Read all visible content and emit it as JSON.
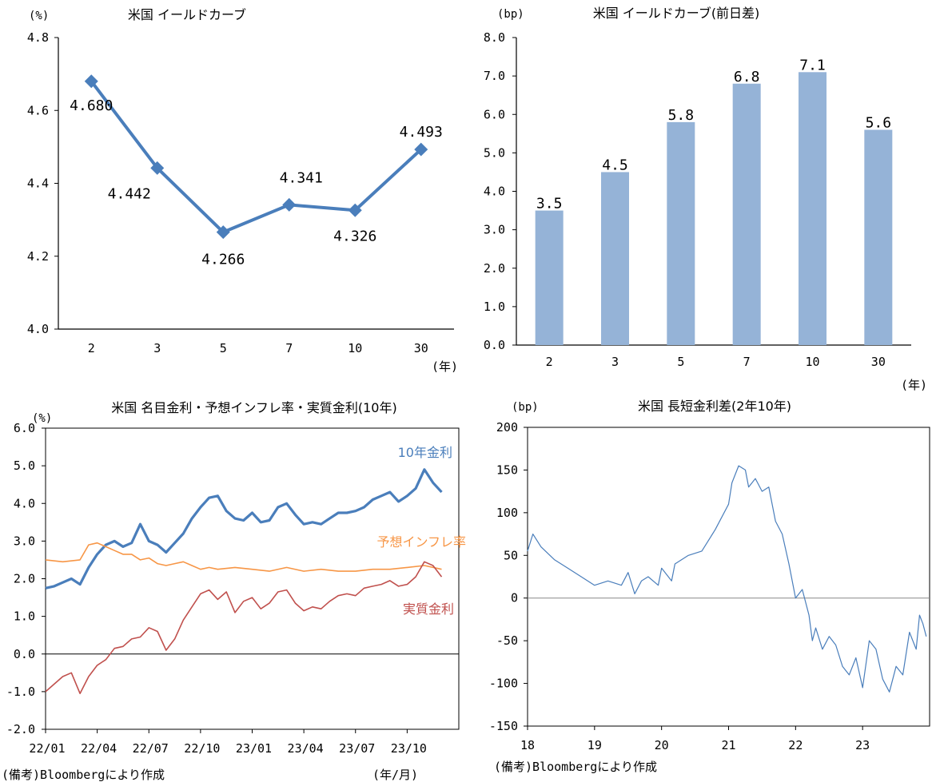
{
  "chart_data": [
    {
      "id": "yield_curve",
      "type": "line",
      "title": "米国 イールドカーブ",
      "unit_label": "(%)",
      "xlabel": "(年)",
      "categories": [
        "2",
        "3",
        "5",
        "7",
        "10",
        "30"
      ],
      "values": [
        4.68,
        4.442,
        4.266,
        4.341,
        4.326,
        4.493
      ],
      "value_labels": [
        "4.680",
        "4.442",
        "4.266",
        "4.341",
        "4.326",
        "4.493"
      ],
      "ylim": [
        4.0,
        4.8
      ],
      "yticks": [
        "4.0",
        "4.2",
        "4.4",
        "4.6",
        "4.8"
      ],
      "color": "#4a7ebb"
    },
    {
      "id": "yield_change",
      "type": "bar",
      "title": "米国 イールドカーブ(前日差)",
      "unit_label": "(bp)",
      "xlabel": "(年)",
      "categories": [
        "2",
        "3",
        "5",
        "7",
        "10",
        "30"
      ],
      "values": [
        3.5,
        4.5,
        5.8,
        6.8,
        7.1,
        5.6
      ],
      "value_labels": [
        "3.5",
        "4.5",
        "5.8",
        "6.8",
        "7.1",
        "5.6"
      ],
      "ylim": [
        0.0,
        8.0
      ],
      "yticks": [
        "0.0",
        "1.0",
        "2.0",
        "3.0",
        "4.0",
        "5.0",
        "6.0",
        "7.0",
        "8.0"
      ],
      "color": "#95b3d7"
    },
    {
      "id": "rates",
      "type": "line",
      "title": "米国 名目金利・予想インフレ率・実質金利(10年)",
      "unit_label": "(%)",
      "xlabel": "(年/月)",
      "note": "(備考)Bloombergにより作成",
      "x_range": [
        0,
        24
      ],
      "ylim": [
        -2.0,
        6.0
      ],
      "yticks": [
        "-2.0",
        "-1.0",
        "0.0",
        "1.0",
        "2.0",
        "3.0",
        "4.0",
        "5.0",
        "6.0"
      ],
      "xticks": [
        "22/01",
        "22/04",
        "22/07",
        "22/10",
        "23/01",
        "23/04",
        "23/07",
        "23/10"
      ],
      "series": [
        {
          "name": "10年金利",
          "color": "#4a7ebb",
          "width": 3.2,
          "x": [
            0,
            0.5,
            1,
            1.5,
            2,
            2.5,
            3,
            3.5,
            4,
            4.5,
            5,
            5.5,
            6,
            6.5,
            7,
            7.5,
            8,
            8.5,
            9,
            9.5,
            10,
            10.5,
            11,
            11.5,
            12,
            12.5,
            13,
            13.5,
            14,
            14.5,
            15,
            15.5,
            16,
            16.5,
            17,
            17.5,
            18,
            18.5,
            19,
            19.5,
            20,
            20.5,
            21,
            21.5,
            22,
            22.5,
            23
          ],
          "values": [
            1.75,
            1.8,
            1.9,
            2.0,
            1.85,
            2.3,
            2.65,
            2.9,
            3.0,
            2.85,
            2.95,
            3.45,
            3.0,
            2.9,
            2.7,
            2.95,
            3.2,
            3.6,
            3.9,
            4.15,
            4.2,
            3.8,
            3.6,
            3.55,
            3.75,
            3.5,
            3.55,
            3.9,
            4.0,
            3.7,
            3.45,
            3.5,
            3.45,
            3.6,
            3.75,
            3.75,
            3.8,
            3.9,
            4.1,
            4.2,
            4.3,
            4.05,
            4.2,
            4.4,
            4.9,
            4.55,
            4.3
          ]
        },
        {
          "name": "予想インフレ率",
          "color": "#f79646",
          "width": 1.6,
          "x": [
            0,
            1,
            2,
            2.5,
            3,
            3.5,
            4,
            4.5,
            5,
            5.5,
            6,
            6.5,
            7,
            7.5,
            8,
            8.5,
            9,
            9.5,
            10,
            11,
            12,
            13,
            14,
            15,
            16,
            17,
            18,
            19,
            20,
            21,
            22,
            23
          ],
          "values": [
            2.5,
            2.45,
            2.5,
            2.9,
            2.95,
            2.85,
            2.75,
            2.65,
            2.65,
            2.5,
            2.55,
            2.4,
            2.35,
            2.4,
            2.45,
            2.35,
            2.25,
            2.3,
            2.25,
            2.3,
            2.25,
            2.2,
            2.3,
            2.2,
            2.25,
            2.2,
            2.2,
            2.25,
            2.25,
            2.3,
            2.35,
            2.25
          ]
        },
        {
          "name": "実質金利",
          "color": "#c0504d",
          "width": 1.6,
          "x": [
            0,
            1,
            1.5,
            2,
            2.5,
            3,
            3.5,
            4,
            4.5,
            5,
            5.5,
            6,
            6.5,
            7,
            7.5,
            8,
            8.5,
            9,
            9.5,
            10,
            10.5,
            11,
            11.5,
            12,
            12.5,
            13,
            13.5,
            14,
            14.5,
            15,
            15.5,
            16,
            16.5,
            17,
            17.5,
            18,
            18.5,
            19,
            19.5,
            20,
            20.5,
            21,
            21.5,
            22,
            22.5,
            23
          ],
          "values": [
            -1.0,
            -0.6,
            -0.5,
            -1.05,
            -0.6,
            -0.3,
            -0.15,
            0.15,
            0.2,
            0.4,
            0.45,
            0.7,
            0.6,
            0.1,
            0.4,
            0.9,
            1.25,
            1.6,
            1.7,
            1.45,
            1.65,
            1.1,
            1.4,
            1.5,
            1.2,
            1.35,
            1.65,
            1.7,
            1.35,
            1.15,
            1.25,
            1.2,
            1.4,
            1.55,
            1.6,
            1.55,
            1.75,
            1.8,
            1.85,
            1.95,
            1.8,
            1.85,
            2.05,
            2.45,
            2.35,
            2.05
          ]
        }
      ]
    },
    {
      "id": "spread",
      "type": "line",
      "title": "米国 長短金利差(2年10年)",
      "unit_label": "(bp)",
      "note": "(備考)Bloombergにより作成",
      "x_range": [
        0,
        6
      ],
      "ylim": [
        -150,
        200
      ],
      "yticks": [
        "-150",
        "-100",
        "-50",
        "0",
        "50",
        "100",
        "150",
        "200"
      ],
      "xticks": [
        "18",
        "19",
        "20",
        "21",
        "22",
        "23"
      ],
      "series": [
        {
          "name": "長短金利差",
          "color": "#4a7ebb",
          "width": 1.2,
          "x": [
            0,
            0.08,
            0.2,
            0.4,
            0.6,
            0.8,
            1.0,
            1.2,
            1.4,
            1.5,
            1.6,
            1.7,
            1.8,
            1.95,
            2.0,
            2.15,
            2.2,
            2.4,
            2.6,
            2.8,
            3.0,
            3.05,
            3.15,
            3.25,
            3.3,
            3.4,
            3.5,
            3.6,
            3.7,
            3.8,
            3.9,
            4.0,
            4.1,
            4.2,
            4.25,
            4.3,
            4.4,
            4.5,
            4.6,
            4.7,
            4.8,
            4.9,
            5.0,
            5.1,
            5.2,
            5.3,
            5.4,
            5.5,
            5.6,
            5.7,
            5.8,
            5.85,
            5.9,
            5.95
          ],
          "values": [
            55,
            75,
            60,
            45,
            35,
            25,
            15,
            20,
            15,
            30,
            5,
            20,
            25,
            15,
            35,
            20,
            40,
            50,
            55,
            80,
            110,
            135,
            155,
            150,
            130,
            140,
            125,
            130,
            90,
            75,
            40,
            0,
            10,
            -20,
            -50,
            -35,
            -60,
            -45,
            -55,
            -80,
            -90,
            -70,
            -105,
            -50,
            -60,
            -95,
            -110,
            -80,
            -90,
            -40,
            -60,
            -20,
            -30,
            -45
          ]
        }
      ]
    }
  ]
}
